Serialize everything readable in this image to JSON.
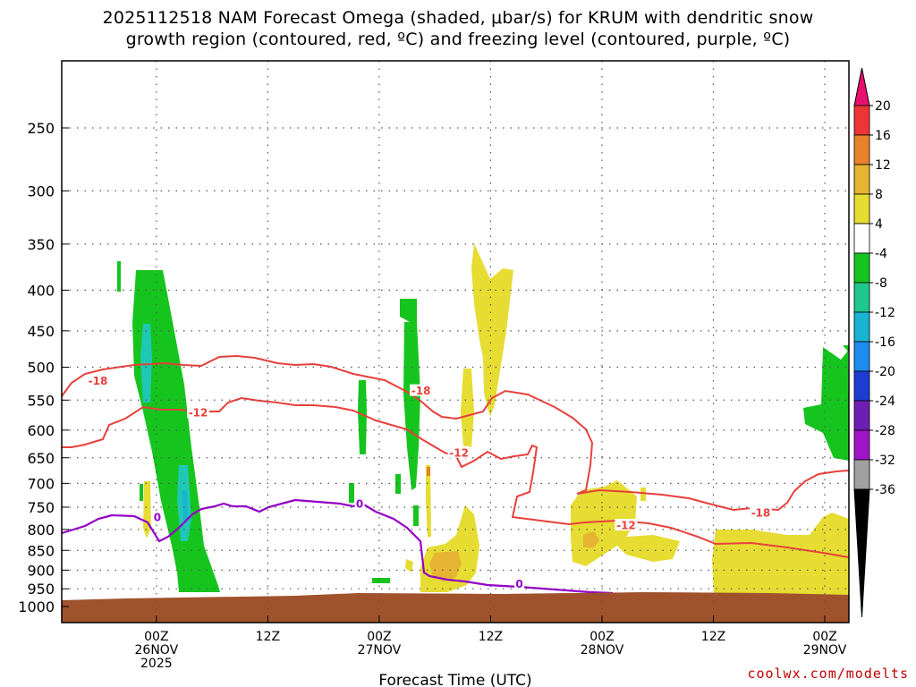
{
  "title": {
    "line1": "2025112518 NAM Forecast Omega (shaded, μbar/s) for KRUM with dendritic snow",
    "line2": "growth region (contoured, red, ºC) and freezing level (contoured, purple, ºC)"
  },
  "credit": "coolwx.com/modelts",
  "colors": {
    "terrain": "#a0522d",
    "dgz_contour": "#e8403c",
    "freezing_contour": "#9400c8",
    "grid": "#555555"
  },
  "chart_data": {
    "type": "heatmap",
    "title": "2025112518 NAM Forecast Omega (shaded, μbar/s) for KRUM with dendritic snow growth region (contoured, red, ºC) and freezing level (contoured, purple, ºC)",
    "xlabel": "Forecast Time (UTC)",
    "ylabel": "",
    "y_scale": "log-pressure",
    "y_ticks": [
      250,
      300,
      350,
      400,
      450,
      500,
      550,
      600,
      650,
      700,
      750,
      800,
      850,
      900,
      950,
      1000
    ],
    "x_range_hours": [
      -4.2,
      80.6
    ],
    "x_ticks": [
      {
        "hour": 6,
        "labels": [
          "00Z",
          "26NOV",
          "2025"
        ]
      },
      {
        "hour": 18,
        "labels": [
          "12Z"
        ]
      },
      {
        "hour": 30,
        "labels": [
          "00Z",
          "27NOV"
        ]
      },
      {
        "hour": 42,
        "labels": [
          "12Z"
        ]
      },
      {
        "hour": 54,
        "labels": [
          "00Z",
          "28NOV"
        ]
      },
      {
        "hour": 66,
        "labels": [
          "12Z"
        ]
      },
      {
        "hour": 78,
        "labels": [
          "00Z",
          "29NOV"
        ]
      }
    ],
    "colorbar": {
      "labels": [
        "20",
        "16",
        "12",
        "8",
        "4",
        "-4",
        "-8",
        "-12",
        "-16",
        "-20",
        "-24",
        "-28",
        "-32",
        "-36"
      ],
      "colors": [
        "#e8106e",
        "#ee3535",
        "#e8822a",
        "#e6b432",
        "#e6dc32",
        "#ffffff",
        "#16c41e",
        "#1ec88c",
        "#18b4d2",
        "#1e8cf0",
        "#1e3cd2",
        "#6e1eb4",
        "#a014c8",
        "#a0a0a0",
        "#000000"
      ]
    },
    "contour_labels": {
      "dgz": [
        {
          "text": "-18",
          "hour": -0.3,
          "p": 520
        },
        {
          "text": "-12",
          "hour": 10.5,
          "p": 570
        },
        {
          "text": "-18",
          "hour": 34.5,
          "p": 535
        },
        {
          "text": "-12",
          "hour": 38.6,
          "p": 640
        },
        {
          "text": "-12",
          "hour": 56.6,
          "p": 790
        },
        {
          "text": "-18",
          "hour": 71.1,
          "p": 762
        }
      ],
      "freezing": [
        {
          "text": "0",
          "hour": 6.1,
          "p": 772
        },
        {
          "text": "0",
          "hour": 27.9,
          "p": 742
        },
        {
          "text": "0",
          "hour": 45.1,
          "p": 936
        }
      ]
    },
    "omega_regions": [
      {
        "value": "-4",
        "description": "green upward motion columns"
      },
      {
        "value": "4",
        "description": "yellow downward motion areas"
      },
      {
        "value": "-12",
        "description": "cyan cores"
      },
      {
        "value": "8",
        "description": "orange cores"
      }
    ]
  }
}
